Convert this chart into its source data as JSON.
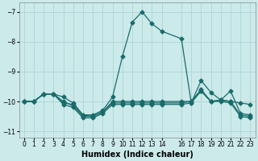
{
  "xlabel": "Humidex (Indice chaleur)",
  "bg_color": "#cceaea",
  "grid_color": "#b0d8d8",
  "line_color": "#1a6b6b",
  "xlim": [
    -0.5,
    23.5
  ],
  "ylim": [
    -11.2,
    -6.7
  ],
  "yticks": [
    -11,
    -10,
    -9,
    -8,
    -7
  ],
  "xticks": [
    0,
    1,
    2,
    3,
    4,
    5,
    6,
    7,
    8,
    9,
    10,
    11,
    12,
    13,
    14,
    16,
    17,
    18,
    19,
    20,
    21,
    22,
    23
  ],
  "line1_x": [
    0,
    1,
    2,
    3,
    4,
    5,
    6,
    7,
    8,
    9,
    10,
    11,
    12,
    13,
    14,
    16,
    17,
    18,
    19,
    20,
    21,
    22,
    23
  ],
  "line1_y": [
    -10.0,
    -10.0,
    -9.75,
    -9.75,
    -9.85,
    -10.05,
    -10.45,
    -10.45,
    -10.3,
    -9.85,
    -8.5,
    -7.35,
    -7.0,
    -7.4,
    -7.65,
    -7.9,
    -10.05,
    -9.3,
    -9.7,
    -9.95,
    -10.0,
    -10.05,
    -10.1
  ],
  "line2_x": [
    0,
    1,
    2,
    3,
    4,
    5,
    6,
    7,
    8,
    9,
    10,
    11,
    12,
    13,
    14,
    16,
    17,
    18,
    19,
    20,
    21,
    22,
    23
  ],
  "line2_y": [
    -10.0,
    -10.0,
    -9.75,
    -9.75,
    -10.0,
    -10.15,
    -10.5,
    -10.5,
    -10.35,
    -10.0,
    -10.0,
    -10.0,
    -10.0,
    -10.0,
    -10.0,
    -10.0,
    -10.0,
    -9.65,
    -10.0,
    -9.95,
    -9.65,
    -10.4,
    -10.45
  ],
  "line3_x": [
    0,
    1,
    2,
    3,
    4,
    5,
    6,
    7,
    8,
    9,
    10,
    11,
    12,
    13,
    14,
    16,
    17,
    18,
    19,
    20,
    21,
    22,
    23
  ],
  "line3_y": [
    -10.0,
    -10.0,
    -9.75,
    -9.75,
    -10.1,
    -10.2,
    -10.55,
    -10.55,
    -10.4,
    -10.1,
    -10.1,
    -10.1,
    -10.1,
    -10.1,
    -10.1,
    -10.1,
    -10.05,
    -9.65,
    -10.0,
    -9.95,
    -10.0,
    -10.45,
    -10.5
  ],
  "line4_x": [
    0,
    1,
    2,
    3,
    4,
    5,
    6,
    7,
    8,
    9,
    10,
    11,
    12,
    13,
    14,
    16,
    17,
    18,
    19,
    20,
    21,
    22,
    23
  ],
  "line4_y": [
    -10.0,
    -10.0,
    -9.75,
    -9.75,
    -10.05,
    -10.1,
    -10.45,
    -10.5,
    -10.35,
    -10.05,
    -10.05,
    -10.05,
    -10.05,
    -10.05,
    -10.05,
    -10.05,
    -10.0,
    -9.6,
    -10.0,
    -10.0,
    -10.05,
    -10.5,
    -10.55
  ]
}
